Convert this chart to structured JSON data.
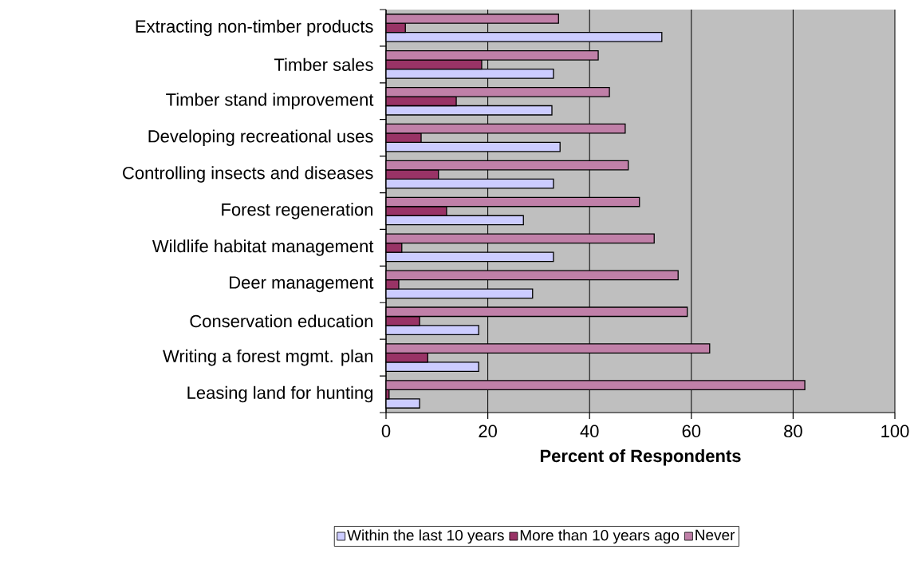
{
  "chart_data": {
    "type": "bar",
    "orientation": "horizontal",
    "xlabel": "Percent of Respondents",
    "categories": [
      "Extracting non-timber products",
      "Timber sales",
      "Timber stand improvement",
      "Developing recreational uses",
      "Controlling insects and diseases",
      "Forest regeneration",
      "Wildlife habitat management",
      "Deer management",
      "Conservation education",
      "Writing a forest mgmt. plan",
      "Leasing land for hunting"
    ],
    "series": [
      {
        "name": "Within the last 10 years",
        "color": "#ccccff",
        "values": [
          54.2,
          32.9,
          32.6,
          34.2,
          32.9,
          27.0,
          32.9,
          28.8,
          18.2,
          18.2,
          6.6
        ]
      },
      {
        "name": "More than 10 years ago",
        "color": "#993366",
        "values": [
          3.8,
          18.8,
          13.8,
          6.9,
          10.3,
          11.9,
          3.1,
          2.5,
          6.6,
          8.2,
          0.6
        ]
      },
      {
        "name": "Never",
        "color": "#c080a8",
        "values": [
          33.9,
          41.7,
          43.9,
          47.0,
          47.6,
          49.8,
          52.7,
          57.4,
          59.2,
          63.6,
          82.3
        ]
      }
    ],
    "xlim": [
      0,
      100
    ],
    "xticks": [
      0,
      20,
      40,
      60,
      80,
      100
    ],
    "grid": "x",
    "legend": "bottom"
  }
}
